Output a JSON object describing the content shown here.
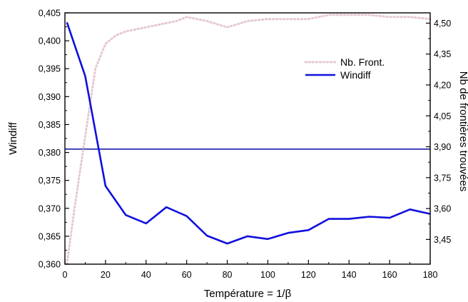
{
  "chart_data": {
    "type": "line",
    "xlabel": "Température = 1/β",
    "ylabel": "Windiff",
    "y2label": "Nb de frontières trouvées",
    "xlim": [
      0,
      180
    ],
    "ylim": [
      0.36,
      0.405
    ],
    "y2lim": [
      3.33,
      4.55
    ],
    "xticks": [
      "0",
      "20",
      "40",
      "60",
      "80",
      "100",
      "120",
      "140",
      "160",
      "180"
    ],
    "xtick_values": [
      0,
      20,
      40,
      60,
      80,
      100,
      120,
      140,
      160,
      180
    ],
    "yticks": [
      "0,360",
      "0,365",
      "0,370",
      "0,375",
      "0,380",
      "0,385",
      "0,390",
      "0,395",
      "0,400",
      "0,405"
    ],
    "ytick_values": [
      0.36,
      0.365,
      0.37,
      0.375,
      0.38,
      0.385,
      0.39,
      0.395,
      0.4,
      0.405
    ],
    "y2ticks": [
      "3,45",
      "3,60",
      "3,75",
      "3,90",
      "4,05",
      "4,20",
      "4,35",
      "4,50"
    ],
    "y2tick_values": [
      3.45,
      3.6,
      3.75,
      3.9,
      4.05,
      4.2,
      4.35,
      4.5
    ],
    "legend_position": "top-right",
    "grid": false,
    "series": [
      {
        "name": "Nb. Front.",
        "axis": "right",
        "style": "dotted",
        "color": "#e6c8d2",
        "x": [
          1,
          5,
          10,
          15,
          20,
          25,
          30,
          40,
          50,
          55,
          60,
          70,
          80,
          90,
          100,
          110,
          120,
          130,
          140,
          150,
          160,
          170,
          180
        ],
        "values": [
          3.33,
          3.62,
          3.95,
          4.28,
          4.4,
          4.44,
          4.46,
          4.48,
          4.5,
          4.51,
          4.53,
          4.51,
          4.48,
          4.51,
          4.52,
          4.52,
          4.52,
          4.54,
          4.54,
          4.54,
          4.53,
          4.53,
          4.52
        ]
      },
      {
        "name": "Windiff",
        "axis": "left",
        "style": "solid",
        "color": "#1010dd",
        "x": [
          1,
          10,
          20,
          30,
          40,
          50,
          60,
          70,
          80,
          90,
          100,
          110,
          120,
          130,
          140,
          150,
          160,
          170,
          180
        ],
        "values": [
          0.4033,
          0.3937,
          0.374,
          0.3688,
          0.3673,
          0.3702,
          0.3686,
          0.3651,
          0.3637,
          0.365,
          0.3645,
          0.3656,
          0.3661,
          0.3681,
          0.3681,
          0.3685,
          0.3683,
          0.3698,
          0.369
        ]
      }
    ],
    "reference_lines": [
      {
        "axis": "left",
        "y": 0.3806,
        "color": "#1a1aaa"
      }
    ]
  }
}
